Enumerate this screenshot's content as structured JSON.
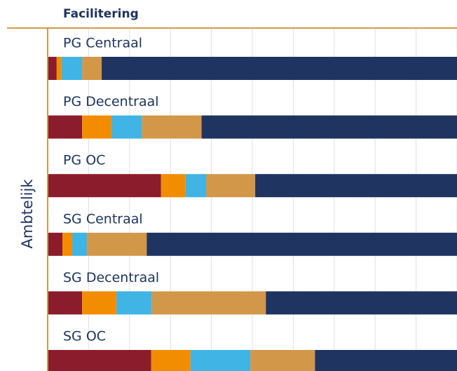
{
  "chart_data": {
    "type": "stacked-bar-horizontal",
    "title": "Facilitering",
    "ylabel": "Ambtelijk",
    "categories": [
      "PG Centraal",
      "PG Decentraal",
      "PG OC",
      "SG Centraal",
      "SG Decentraal",
      "SG OC"
    ],
    "series": [
      {
        "color": "#8b1c2b",
        "values": [
          2.2,
          8.4,
          27.7,
          3.6,
          8.4,
          25.3
        ]
      },
      {
        "color": "#f28c00",
        "values": [
          1.2,
          7.2,
          6.0,
          2.4,
          8.4,
          9.6
        ]
      },
      {
        "color": "#3fb4e5",
        "values": [
          5.0,
          7.4,
          5.0,
          3.6,
          8.6,
          14.6
        ]
      },
      {
        "color": "#d3974a",
        "values": [
          4.8,
          14.6,
          12.0,
          14.6,
          27.9,
          15.8
        ]
      },
      {
        "color": "#1f3461",
        "values": [
          86.8,
          62.4,
          49.3,
          75.8,
          46.7,
          34.7
        ]
      }
    ],
    "xlim": [
      0,
      100
    ],
    "xticks": [
      0,
      10,
      20,
      30,
      40,
      50,
      60,
      70,
      80,
      90,
      100
    ],
    "grid": true
  }
}
